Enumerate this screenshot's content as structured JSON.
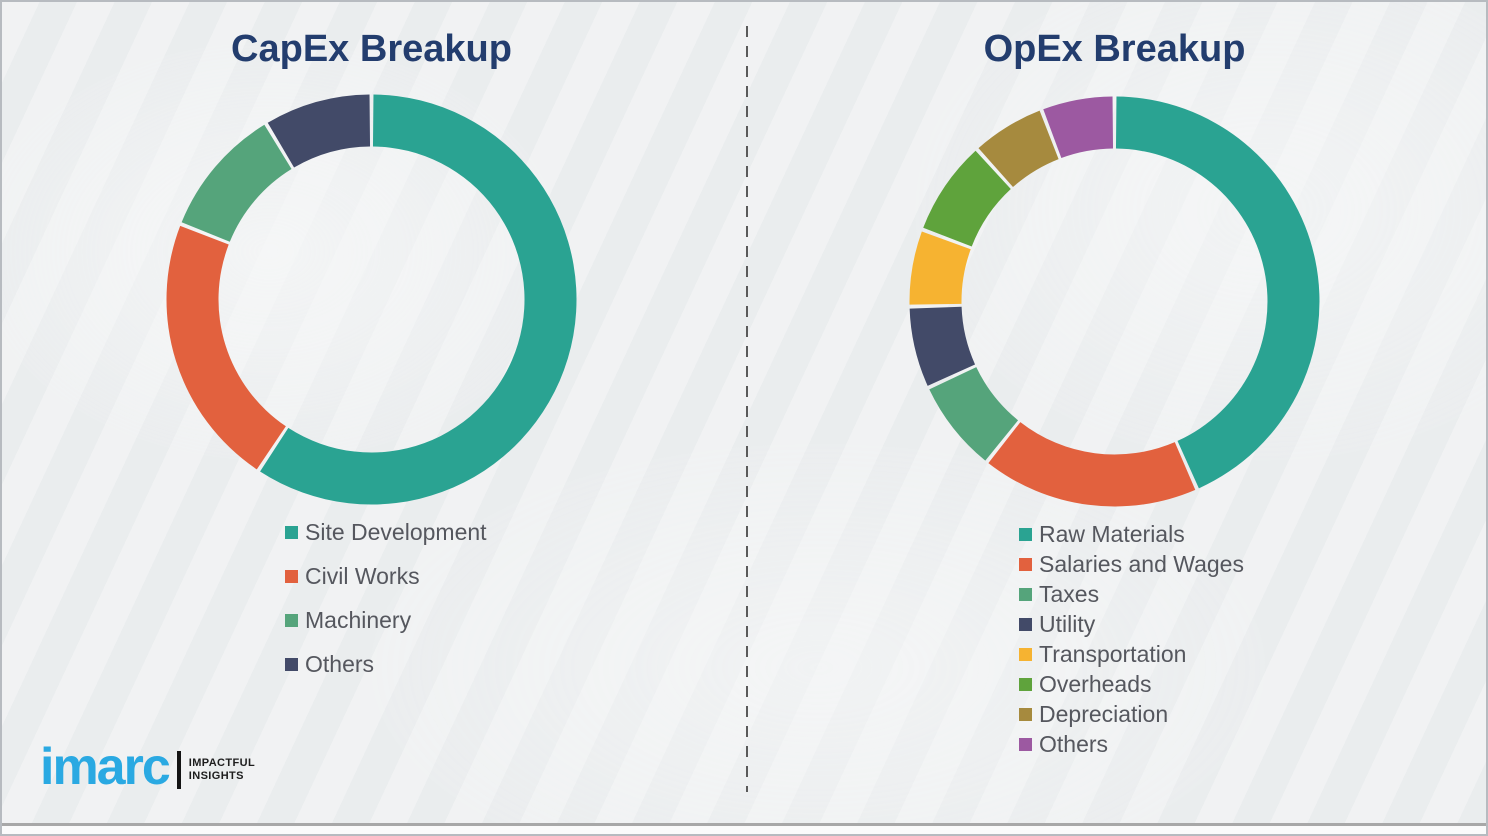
{
  "page": {
    "background_color": "#eef0f1",
    "title_color": "#233d6e",
    "legend_text_color": "#55575e",
    "divider_style": "vertical-dashed",
    "divider_color": "#5a5a5a"
  },
  "chart_data": [
    {
      "type": "pie",
      "subtype": "donut",
      "title": "CapEx Breakup",
      "categories": [
        "Site Development",
        "Civil Works",
        "Machinery",
        "Others"
      ],
      "values": [
        59.3,
        21.7,
        10.4,
        8.6
      ],
      "values_note": "percent, estimated from arc angles (no data labels shown)",
      "colors": [
        "#2aa392",
        "#e2613e",
        "#55a47b",
        "#424a68"
      ],
      "start_angle_deg": 0,
      "direction": "clockwise",
      "legend_position": "below-left",
      "grid": false
    },
    {
      "type": "pie",
      "subtype": "donut",
      "title": "OpEx Breakup",
      "categories": [
        "Raw Materials",
        "Salaries and Wages",
        "Taxes",
        "Utility",
        "Transportation",
        "Overheads",
        "Depreciation",
        "Others"
      ],
      "values": [
        43.4,
        17.3,
        7.4,
        6.5,
        6.1,
        7.6,
        5.9,
        5.8
      ],
      "values_note": "percent, estimated from arc angles (no data labels shown)",
      "colors": [
        "#2aa392",
        "#e2613e",
        "#55a47b",
        "#424a68",
        "#f6b331",
        "#5fa33c",
        "#a68a3e",
        "#9c59a1"
      ],
      "start_angle_deg": 0,
      "direction": "clockwise",
      "legend_position": "below-left",
      "grid": false
    }
  ],
  "logo": {
    "brand": "imarc",
    "brand_color": "#2aa9e2",
    "tagline_line1": "IMPACTFUL",
    "tagline_line2": "INSIGHTS"
  }
}
